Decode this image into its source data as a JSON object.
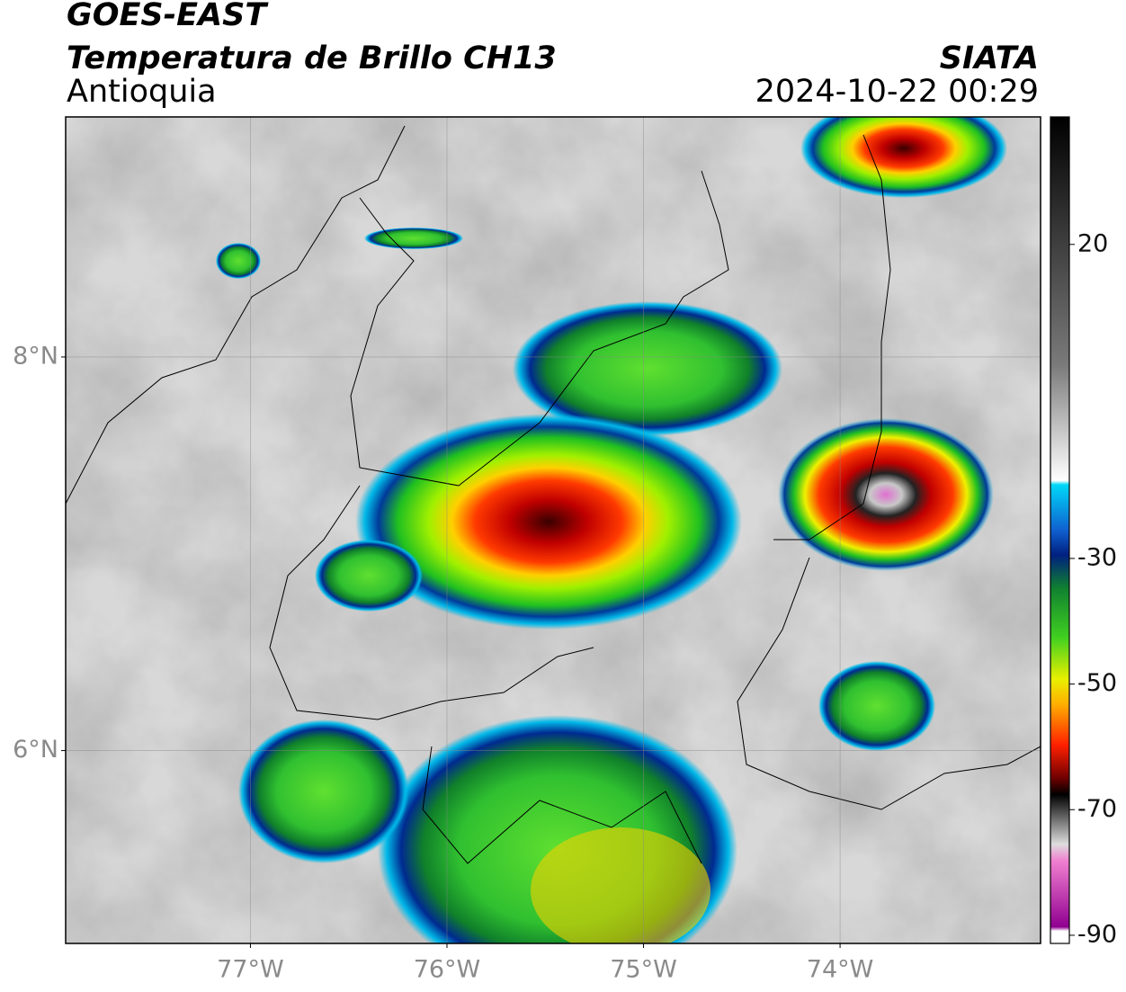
{
  "header": {
    "title": "GOES-EAST",
    "subtitle": "Temperatura de Brillo CH13",
    "region": "Antioquia",
    "source": "SIATA",
    "datetime": "2024-10-22 00:29"
  },
  "map": {
    "xlim": [
      -77.94,
      -72.98
    ],
    "ylim": [
      5.02,
      9.22
    ],
    "xticks": [
      {
        "value": -77,
        "label": "77°W"
      },
      {
        "value": -76,
        "label": "76°W"
      },
      {
        "value": -75,
        "label": "75°W"
      },
      {
        "value": -74,
        "label": "74°W"
      }
    ],
    "yticks": [
      {
        "value": 8,
        "label": "8°N"
      },
      {
        "value": 6,
        "label": "6°N"
      }
    ],
    "grid": true
  },
  "colorbar": {
    "lim": [
      -91.3,
      40.3
    ],
    "ticks": [
      20,
      -30,
      -50,
      -70,
      -90
    ]
  }
}
